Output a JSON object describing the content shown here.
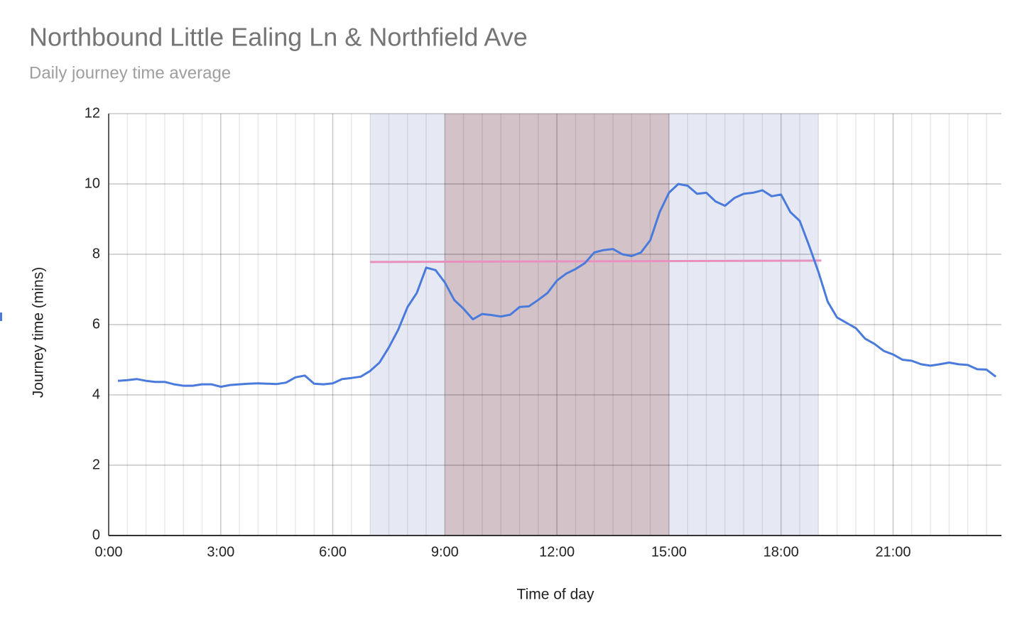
{
  "chart_data": {
    "type": "line",
    "title": "Northbound Little Ealing Ln & Northfield Ave",
    "subtitle": "Daily journey time average",
    "xlabel": "Time of day",
    "ylabel": "Journey time (mins)",
    "x": [
      0.25,
      0.5,
      0.75,
      1,
      1.25,
      1.5,
      1.75,
      2,
      2.25,
      2.5,
      2.75,
      3,
      3.25,
      3.5,
      3.75,
      4,
      4.25,
      4.5,
      4.75,
      5,
      5.25,
      5.5,
      5.75,
      6,
      6.25,
      6.5,
      6.75,
      7,
      7.25,
      7.5,
      7.75,
      8,
      8.25,
      8.5,
      8.75,
      9,
      9.25,
      9.5,
      9.75,
      10,
      10.25,
      10.5,
      10.75,
      11,
      11.25,
      11.5,
      11.75,
      12,
      12.25,
      12.5,
      12.75,
      13,
      13.25,
      13.5,
      13.75,
      14,
      14.25,
      14.5,
      14.75,
      15,
      15.25,
      15.5,
      15.75,
      16,
      16.25,
      16.5,
      16.75,
      17,
      17.25,
      17.5,
      17.75,
      18,
      18.25,
      18.5,
      18.75,
      19,
      19.25,
      19.5,
      19.75,
      20,
      20.25,
      20.5,
      20.75,
      21,
      21.25,
      21.5,
      21.75,
      22,
      22.25,
      22.5,
      22.75,
      23,
      23.25,
      23.5,
      23.75
    ],
    "values": [
      4.4,
      4.42,
      4.45,
      4.4,
      4.37,
      4.37,
      4.3,
      4.26,
      4.26,
      4.3,
      4.3,
      4.23,
      4.28,
      4.3,
      4.32,
      4.33,
      4.32,
      4.31,
      4.35,
      4.5,
      4.55,
      4.32,
      4.3,
      4.33,
      4.45,
      4.48,
      4.52,
      4.68,
      4.92,
      5.35,
      5.85,
      6.5,
      6.9,
      7.62,
      7.55,
      7.2,
      6.7,
      6.45,
      6.15,
      6.3,
      6.27,
      6.23,
      6.28,
      6.5,
      6.52,
      6.7,
      6.9,
      7.25,
      7.45,
      7.58,
      7.75,
      8.05,
      8.12,
      8.15,
      8.0,
      7.95,
      8.05,
      8.4,
      9.2,
      9.75,
      10.0,
      9.95,
      9.72,
      9.75,
      9.5,
      9.38,
      9.6,
      9.72,
      9.75,
      9.82,
      9.65,
      9.7,
      9.2,
      8.95,
      8.25,
      7.5,
      6.65,
      6.2,
      6.05,
      5.9,
      5.6,
      5.45,
      5.25,
      5.15,
      5.0,
      4.97,
      4.87,
      4.83,
      4.87,
      4.92,
      4.87,
      4.85,
      4.73,
      4.72,
      4.52
    ],
    "color": "#4a7bdc",
    "reference_line": {
      "x": [
        7,
        19.08
      ],
      "values": [
        7.78,
        7.82
      ],
      "color": "#e890be"
    },
    "bands": [
      {
        "start": 7,
        "end": 19,
        "color": "#e6e9f4"
      },
      {
        "start": 9,
        "end": 15,
        "color": "#d3c3c8"
      }
    ],
    "xlim": [
      0,
      23.9
    ],
    "xticks": [
      {
        "value": 0,
        "label": "0:00"
      },
      {
        "value": 3,
        "label": "3:00"
      },
      {
        "value": 6,
        "label": "6:00"
      },
      {
        "value": 9,
        "label": "9:00"
      },
      {
        "value": 12,
        "label": "12:00"
      },
      {
        "value": 15,
        "label": "15:00"
      },
      {
        "value": 18,
        "label": "18:00"
      },
      {
        "value": 21,
        "label": "21:00"
      }
    ],
    "xminorticks": [
      0.5,
      1,
      1.5,
      2,
      2.5,
      3.5,
      4,
      4.5,
      5,
      5.5,
      6.5,
      7,
      7.5,
      8,
      8.5,
      9.5,
      10,
      10.5,
      11,
      11.5,
      12.5,
      13,
      13.5,
      14,
      14.5,
      15.5,
      16,
      16.5,
      17,
      17.5,
      18.5,
      19,
      19.5,
      20,
      20.5,
      21.5,
      22,
      22.5,
      23,
      23.5
    ],
    "ylim": [
      0,
      12
    ],
    "yticks": [
      0,
      2,
      4,
      6,
      8,
      10,
      12
    ],
    "grid": true
  }
}
